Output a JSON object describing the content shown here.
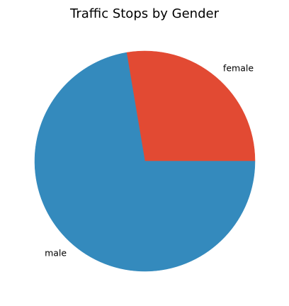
{
  "chart_data": {
    "type": "pie",
    "title": "Traffic Stops by Gender",
    "categories": [
      "female",
      "male"
    ],
    "values": [
      0.2766,
      0.7234
    ],
    "colors": [
      "#E24A33",
      "#348ABD"
    ],
    "start_angle_deg": 0,
    "direction": "counterclockwise",
    "legend": "none"
  }
}
